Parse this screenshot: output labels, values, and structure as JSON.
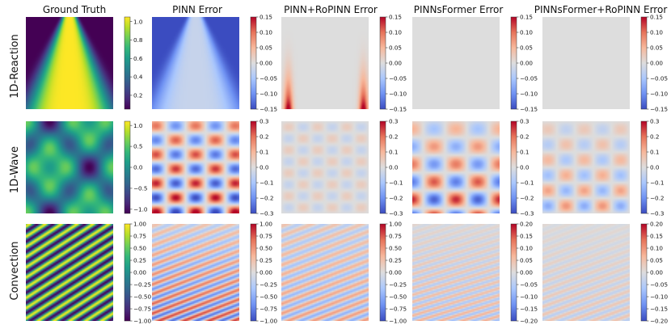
{
  "figure": {
    "column_titles": [
      "Ground Truth",
      "PINN Error",
      "PINN+RoPINN Error",
      "PINNsFormer Error",
      "PINNsFormer+RoPINN Error"
    ],
    "row_labels": [
      "1D-Reaction",
      "1D-Wave",
      "Convection"
    ]
  },
  "colors": {
    "viridis": [
      "#440154",
      "#482878",
      "#3e4989",
      "#31688e",
      "#26828e",
      "#1f9e89",
      "#35b779",
      "#6ece58",
      "#b5de2b",
      "#fde725"
    ],
    "coolwarm": [
      "#3b4cc0",
      "#6f92f3",
      "#aac7fd",
      "#dddddd",
      "#f7b89c",
      "#e7745b",
      "#b40426"
    ]
  },
  "chart_data": [
    {
      "type": "heatmap",
      "row": "1D-Reaction",
      "column": "Ground Truth",
      "colormap": "viridis",
      "pattern": "reaction_truth",
      "range": [
        0.05,
        1.05
      ],
      "ticks": [
        1.0,
        0.8,
        0.6,
        0.4,
        0.2
      ],
      "tick_labels": [
        "1.0",
        "0.8",
        "0.6",
        "0.4",
        "0.2"
      ]
    },
    {
      "type": "heatmap",
      "row": "1D-Reaction",
      "column": "PINN Error",
      "colormap": "coolwarm",
      "pattern": "reaction_pinn",
      "range": [
        -0.15,
        0.15
      ],
      "ticks": [
        0.15,
        0.1,
        0.05,
        0.0,
        -0.05,
        -0.1,
        -0.15
      ],
      "tick_labels": [
        "0.15",
        "0.10",
        "0.05",
        "0.00",
        "−0.05",
        "−0.10",
        "−0.15"
      ]
    },
    {
      "type": "heatmap",
      "row": "1D-Reaction",
      "column": "PINN+RoPINN Error",
      "colormap": "coolwarm",
      "pattern": "reaction_ropinn",
      "range": [
        -0.15,
        0.15
      ],
      "ticks": [
        0.15,
        0.1,
        0.05,
        0.0,
        -0.05,
        -0.1,
        -0.15
      ],
      "tick_labels": [
        "0.15",
        "0.10",
        "0.05",
        "0.00",
        "−0.05",
        "−0.10",
        "−0.15"
      ]
    },
    {
      "type": "heatmap",
      "row": "1D-Reaction",
      "column": "PINNsFormer Error",
      "colormap": "coolwarm",
      "pattern": "flat",
      "range": [
        -0.15,
        0.15
      ],
      "ticks": [
        0.15,
        0.1,
        0.05,
        0.0,
        -0.05,
        -0.1,
        -0.15
      ],
      "tick_labels": [
        "0.15",
        "0.10",
        "0.05",
        "0.00",
        "−0.05",
        "−0.10",
        "−0.15"
      ]
    },
    {
      "type": "heatmap",
      "row": "1D-Reaction",
      "column": "PINNsFormer+RoPINN Error",
      "colormap": "coolwarm",
      "pattern": "flat",
      "range": [
        -0.15,
        0.15
      ],
      "ticks": [
        0.15,
        0.1,
        0.05,
        0.0,
        -0.05,
        -0.1,
        -0.15
      ],
      "tick_labels": [
        "0.15",
        "0.10",
        "0.05",
        "0.00",
        "−0.05",
        "−0.10",
        "−0.15"
      ]
    },
    {
      "type": "heatmap",
      "row": "1D-Wave",
      "column": "Ground Truth",
      "colormap": "viridis",
      "pattern": "wave_truth",
      "range": [
        -1.1,
        1.1
      ],
      "ticks": [
        1.0,
        0.5,
        0.0,
        -0.5,
        -1.0
      ],
      "tick_labels": [
        "1.0",
        "0.5",
        "0.0",
        "−0.5",
        "−1.0"
      ]
    },
    {
      "type": "heatmap",
      "row": "1D-Wave",
      "column": "PINN Error",
      "colormap": "coolwarm",
      "pattern": "wave_pinn",
      "range": [
        -0.3,
        0.3
      ],
      "ticks": [
        0.3,
        0.2,
        0.1,
        0.0,
        -0.1,
        -0.2,
        -0.3
      ],
      "tick_labels": [
        "0.3",
        "0.2",
        "0.1",
        "0.0",
        "−0.1",
        "−0.2",
        "−0.3"
      ]
    },
    {
      "type": "heatmap",
      "row": "1D-Wave",
      "column": "PINN+RoPINN Error",
      "colormap": "coolwarm",
      "pattern": "wave_ropinn",
      "range": [
        -0.3,
        0.3
      ],
      "ticks": [
        0.3,
        0.2,
        0.1,
        0.0,
        -0.1,
        -0.2,
        -0.3
      ],
      "tick_labels": [
        "0.3",
        "0.2",
        "0.1",
        "0.0",
        "−0.1",
        "−0.2",
        "−0.3"
      ]
    },
    {
      "type": "heatmap",
      "row": "1D-Wave",
      "column": "PINNsFormer Error",
      "colormap": "coolwarm",
      "pattern": "wave_former",
      "range": [
        -0.3,
        0.3
      ],
      "ticks": [
        0.3,
        0.2,
        0.1,
        0.0,
        -0.1,
        -0.2,
        -0.3
      ],
      "tick_labels": [
        "0.3",
        "0.2",
        "0.1",
        "0.0",
        "−0.1",
        "−0.2",
        "−0.3"
      ]
    },
    {
      "type": "heatmap",
      "row": "1D-Wave",
      "column": "PINNsFormer+RoPINN Error",
      "colormap": "coolwarm",
      "pattern": "wave_former_ropinn",
      "range": [
        -0.3,
        0.3
      ],
      "ticks": [
        0.3,
        0.2,
        0.1,
        0.0,
        -0.1,
        -0.2,
        -0.3
      ],
      "tick_labels": [
        "0.3",
        "0.2",
        "0.1",
        "0.0",
        "−0.1",
        "−0.2",
        "−0.3"
      ]
    },
    {
      "type": "heatmap",
      "row": "Convection",
      "column": "Ground Truth",
      "colormap": "viridis",
      "pattern": "conv_truth",
      "range": [
        -1.0,
        1.0
      ],
      "ticks": [
        1.0,
        0.75,
        0.5,
        0.25,
        0.0,
        -0.25,
        -0.5,
        -0.75,
        -1.0
      ],
      "tick_labels": [
        "1.00",
        "0.75",
        "0.50",
        "0.25",
        "0.00",
        "−0.25",
        "−0.50",
        "−0.75",
        "−1.00"
      ]
    },
    {
      "type": "heatmap",
      "row": "Convection",
      "column": "PINN Error",
      "colormap": "coolwarm",
      "pattern": "conv_pinn",
      "range": [
        -1.0,
        1.0
      ],
      "ticks": [
        1.0,
        0.75,
        0.5,
        0.25,
        0.0,
        -0.25,
        -0.5,
        -0.75,
        -1.0
      ],
      "tick_labels": [
        "1.00",
        "0.75",
        "0.50",
        "0.25",
        "0.00",
        "−0.25",
        "−0.50",
        "−0.75",
        "−1.00"
      ]
    },
    {
      "type": "heatmap",
      "row": "Convection",
      "column": "PINN+RoPINN Error",
      "colormap": "coolwarm",
      "pattern": "conv_ropinn",
      "range": [
        -1.0,
        1.0
      ],
      "ticks": [
        1.0,
        0.75,
        0.5,
        0.25,
        0.0,
        -0.25,
        -0.5,
        -0.75,
        -1.0
      ],
      "tick_labels": [
        "1.00",
        "0.75",
        "0.50",
        "0.25",
        "0.00",
        "−0.25",
        "−0.50",
        "−0.75",
        "−1.00"
      ]
    },
    {
      "type": "heatmap",
      "row": "Convection",
      "column": "PINNsFormer Error",
      "colormap": "coolwarm",
      "pattern": "conv_former",
      "range": [
        -0.2,
        0.2
      ],
      "ticks": [
        0.2,
        0.15,
        0.1,
        0.05,
        0.0,
        -0.05,
        -0.1,
        -0.15,
        -0.2
      ],
      "tick_labels": [
        "0.20",
        "0.15",
        "0.10",
        "0.05",
        "0.00",
        "−0.05",
        "−0.10",
        "−0.15",
        "−0.20"
      ]
    },
    {
      "type": "heatmap",
      "row": "Convection",
      "column": "PINNsFormer+RoPINN Error",
      "colormap": "coolwarm",
      "pattern": "conv_former_ropinn",
      "range": [
        -0.2,
        0.2
      ],
      "ticks": [
        0.2,
        0.15,
        0.1,
        0.05,
        0.0,
        -0.05,
        -0.1,
        -0.15,
        -0.2
      ],
      "tick_labels": [
        "0.20",
        "0.15",
        "0.10",
        "0.05",
        "0.00",
        "−0.05",
        "−0.10",
        "−0.15",
        "−0.20"
      ]
    }
  ]
}
